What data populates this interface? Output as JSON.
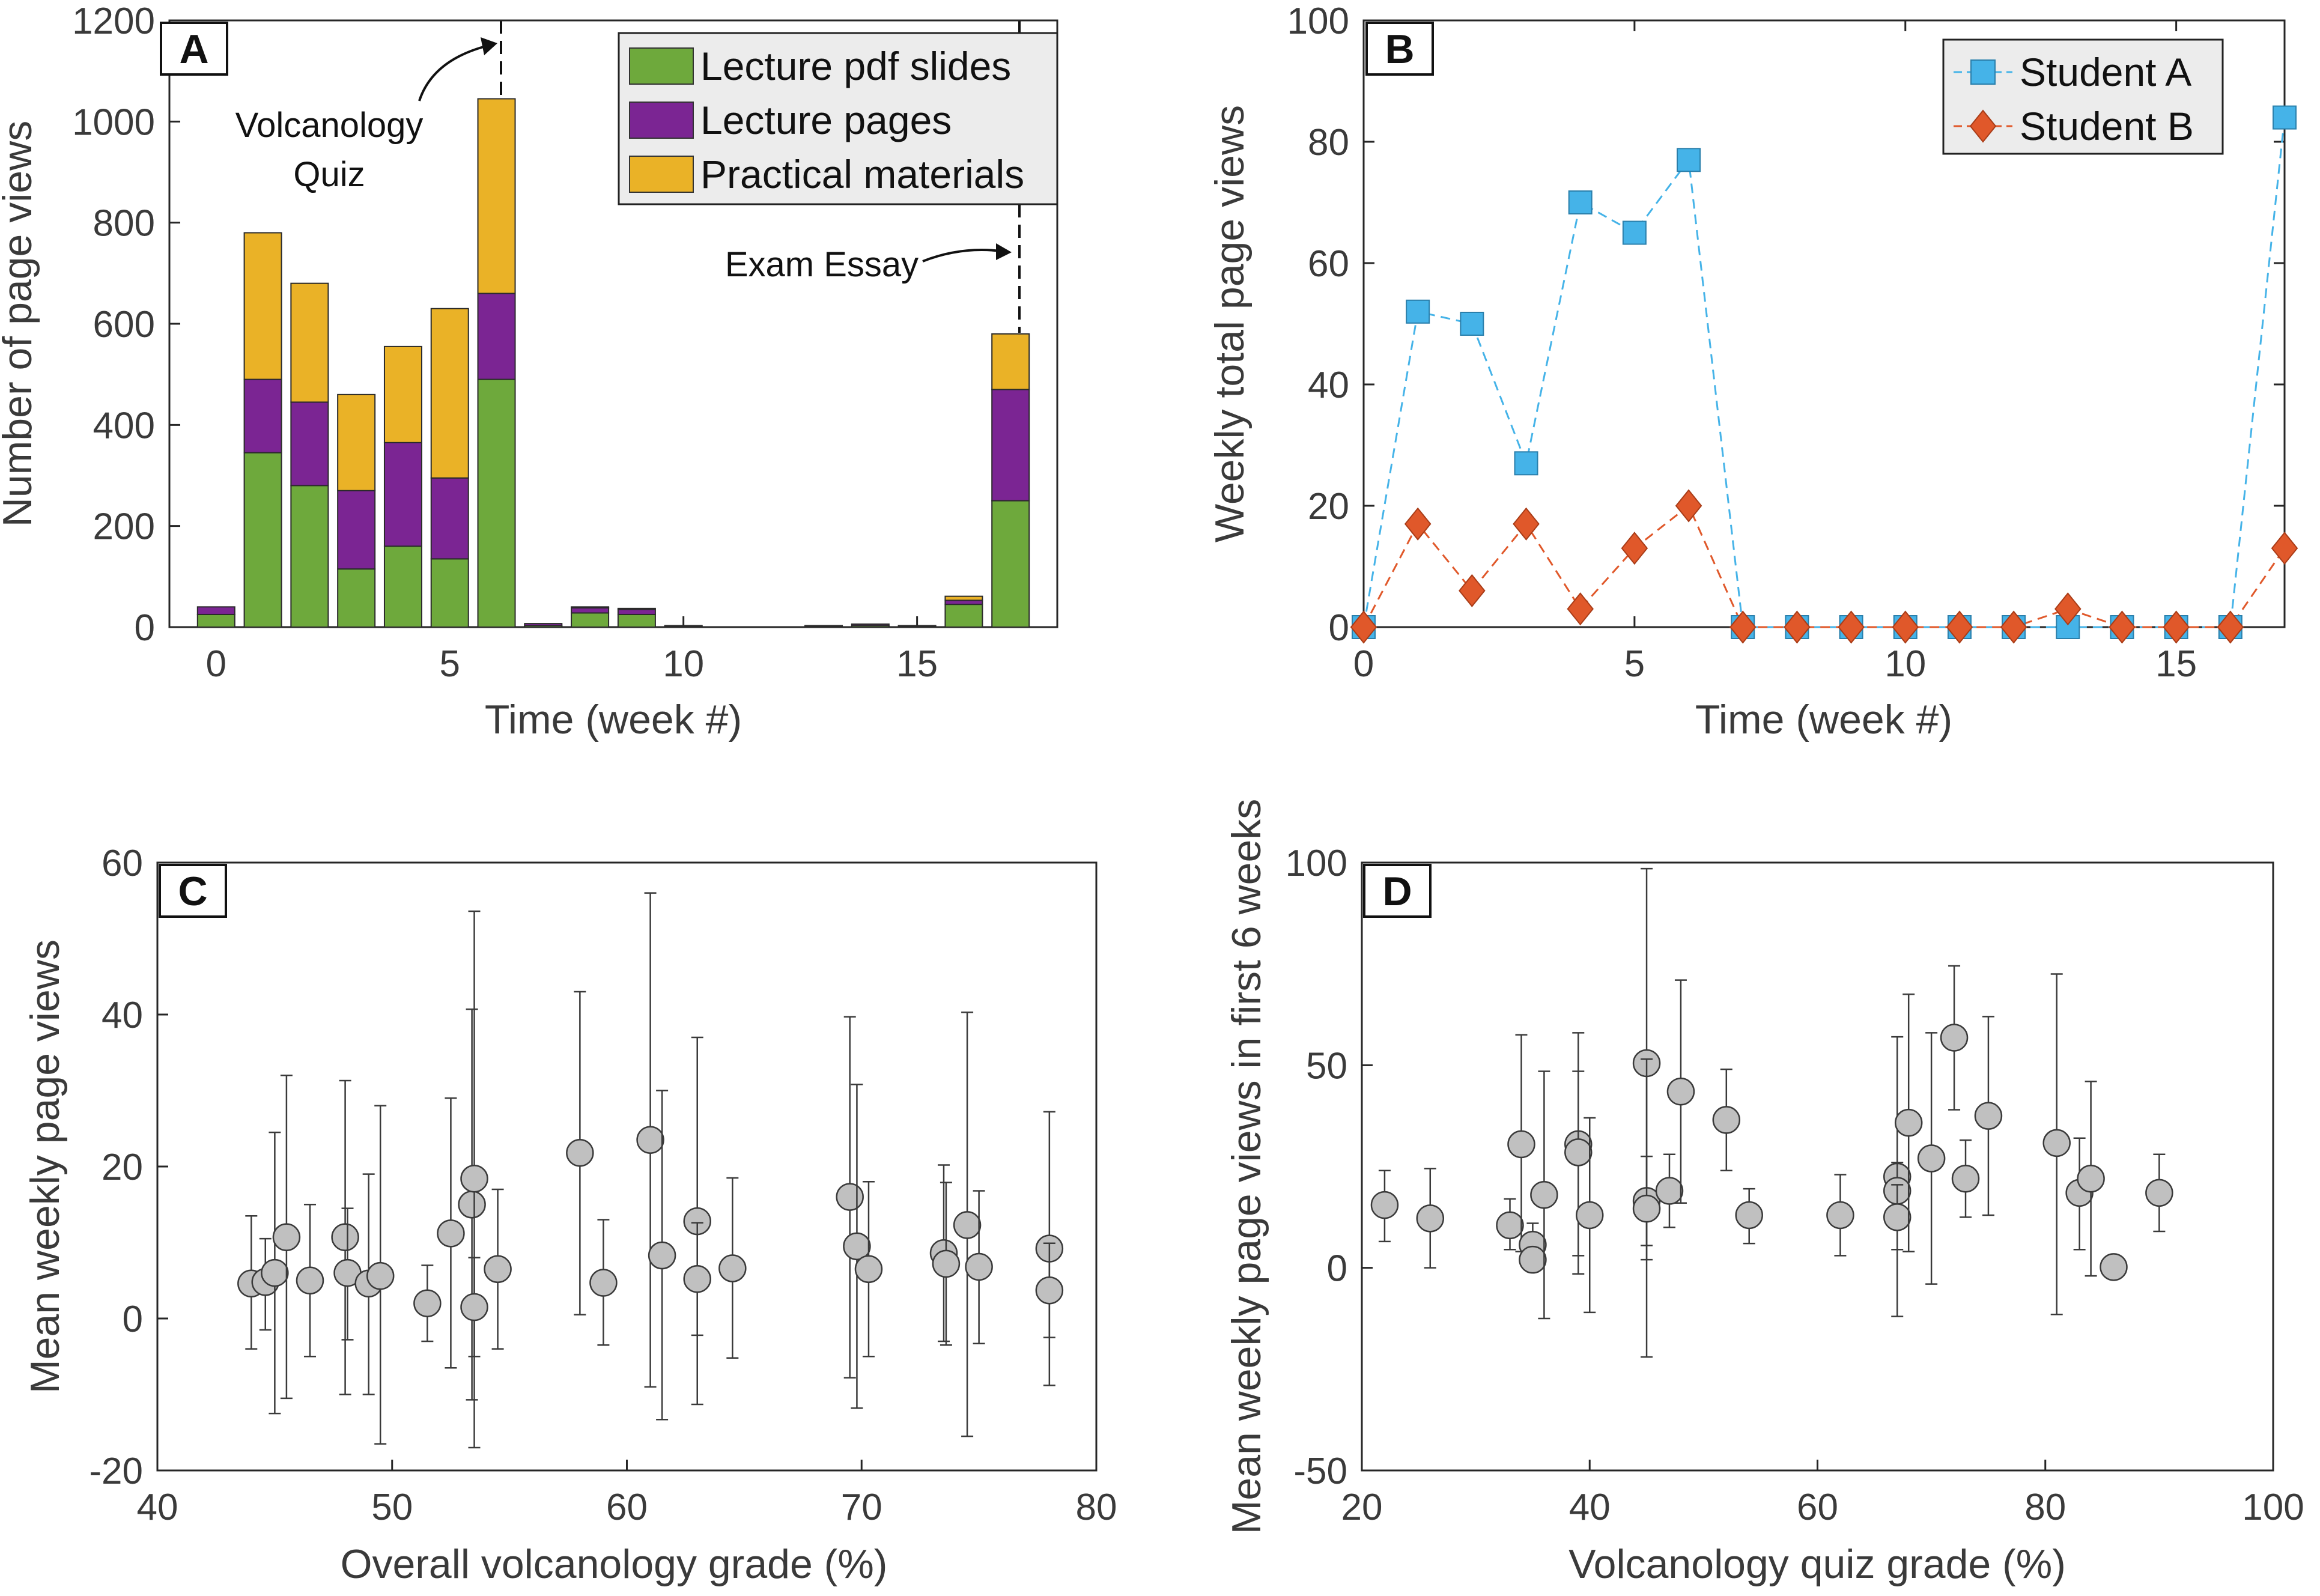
{
  "colors": {
    "pdf": "#6ea93c",
    "lecture": "#7b2593",
    "practical": "#eab227",
    "studentA": "#45b3e8",
    "studentB": "#e0582a",
    "scatter": "#c0c0c0"
  },
  "chart_data": [
    {
      "panel": "A",
      "type": "bar",
      "stacked": true,
      "xlabel": "Time (week #)",
      "ylabel": "Number of page views",
      "xlim": [
        -1,
        18
      ],
      "ylim": [
        0,
        1200
      ],
      "xticks": [
        0,
        5,
        10,
        15
      ],
      "yticks": [
        0,
        200,
        400,
        600,
        800,
        1000,
        1200
      ],
      "categories": [
        0,
        1,
        2,
        3,
        4,
        5,
        6,
        7,
        8,
        9,
        10,
        11,
        12,
        13,
        14,
        15,
        16,
        17
      ],
      "series": [
        {
          "name": "Lecture pdf slides",
          "values": [
            25,
            345,
            280,
            115,
            160,
            135,
            490,
            3,
            28,
            25,
            2,
            0,
            0,
            2,
            3,
            2,
            45,
            250
          ]
        },
        {
          "name": "Lecture pages",
          "values": [
            15,
            145,
            165,
            155,
            205,
            160,
            170,
            4,
            10,
            10,
            1,
            0,
            0,
            1,
            3,
            1,
            8,
            220
          ]
        },
        {
          "name": "Practical materials",
          "values": [
            0,
            290,
            235,
            190,
            190,
            335,
            385,
            0,
            2,
            2,
            0,
            0,
            0,
            0,
            0,
            0,
            8,
            110
          ]
        }
      ],
      "legend": [
        "Lecture pdf slides",
        "Lecture pages",
        "Practical materials"
      ],
      "legend_position": "top-right",
      "annotations": [
        {
          "text": "Volcanology Quiz",
          "lines": [
            "Volcanology",
            "Quiz"
          ],
          "x": 6
        },
        {
          "text": "Exam Essay",
          "x": 17
        }
      ]
    },
    {
      "panel": "B",
      "type": "line",
      "xlabel": "Time (week #)",
      "ylabel": "Weekly total page views",
      "xlim": [
        0,
        17
      ],
      "ylim": [
        0,
        100
      ],
      "xticks": [
        0,
        5,
        10,
        15
      ],
      "yticks": [
        0,
        20,
        40,
        60,
        80,
        100
      ],
      "x": [
        0,
        1,
        2,
        3,
        4,
        5,
        6,
        7,
        8,
        9,
        10,
        11,
        12,
        13,
        14,
        15,
        16,
        17
      ],
      "series": [
        {
          "name": "Student A",
          "marker": "square",
          "values": [
            0,
            52,
            50,
            27,
            70,
            65,
            77,
            0,
            0,
            0,
            0,
            0,
            0,
            0,
            0,
            0,
            0,
            84
          ]
        },
        {
          "name": "Student B",
          "marker": "diamond",
          "values": [
            0,
            17,
            6,
            17,
            3,
            13,
            20,
            0,
            0,
            0,
            0,
            0,
            0,
            3,
            0,
            0,
            0,
            13
          ]
        }
      ],
      "legend_position": "top-right"
    },
    {
      "panel": "C",
      "type": "scatter",
      "xlabel": "Overall volcanology grade (%)",
      "ylabel": "Mean weekly page views",
      "xlim": [
        40,
        80
      ],
      "ylim": [
        -20,
        60
      ],
      "xticks": [
        40,
        50,
        60,
        70,
        80
      ],
      "yticks": [
        -20,
        0,
        20,
        40,
        60
      ],
      "points": [
        {
          "x": 44.0,
          "y": 4.6,
          "lo": -4,
          "hi": 13.5
        },
        {
          "x": 44.6,
          "y": 4.8,
          "lo": -1.5,
          "hi": 10.5
        },
        {
          "x": 45.0,
          "y": 6.0,
          "lo": -12.5,
          "hi": 24.5
        },
        {
          "x": 45.5,
          "y": 10.7,
          "lo": -10.5,
          "hi": 32
        },
        {
          "x": 46.5,
          "y": 5.0,
          "lo": -5,
          "hi": 15
        },
        {
          "x": 48.0,
          "y": 10.7,
          "lo": -10,
          "hi": 31.3
        },
        {
          "x": 48.1,
          "y": 6.0,
          "lo": -2.8,
          "hi": 14.5
        },
        {
          "x": 49.0,
          "y": 4.6,
          "lo": -10,
          "hi": 19
        },
        {
          "x": 49.5,
          "y": 5.6,
          "lo": -16.5,
          "hi": 28
        },
        {
          "x": 51.5,
          "y": 2.0,
          "lo": -3,
          "hi": 7
        },
        {
          "x": 52.5,
          "y": 11.2,
          "lo": -6.5,
          "hi": 29
        },
        {
          "x": 53.4,
          "y": 15.0,
          "lo": -10.7,
          "hi": 40.7
        },
        {
          "x": 53.5,
          "y": 18.4,
          "lo": -17,
          "hi": 53.6
        },
        {
          "x": 53.5,
          "y": 1.5,
          "lo": -5,
          "hi": 8
        },
        {
          "x": 54.5,
          "y": 6.5,
          "lo": -4,
          "hi": 17
        },
        {
          "x": 58.0,
          "y": 21.8,
          "lo": 0.5,
          "hi": 43
        },
        {
          "x": 59.0,
          "y": 4.7,
          "lo": -3.5,
          "hi": 13
        },
        {
          "x": 61.0,
          "y": 23.5,
          "lo": -9,
          "hi": 56
        },
        {
          "x": 61.5,
          "y": 8.3,
          "lo": -13.3,
          "hi": 30
        },
        {
          "x": 63.0,
          "y": 12.8,
          "lo": -11.3,
          "hi": 37
        },
        {
          "x": 63.0,
          "y": 5.2,
          "lo": -2.2,
          "hi": 12.6
        },
        {
          "x": 64.5,
          "y": 6.6,
          "lo": -5.2,
          "hi": 18.5
        },
        {
          "x": 69.5,
          "y": 16.0,
          "lo": -7.8,
          "hi": 39.7
        },
        {
          "x": 69.8,
          "y": 9.5,
          "lo": -11.8,
          "hi": 30.8
        },
        {
          "x": 70.3,
          "y": 6.5,
          "lo": -5,
          "hi": 18
        },
        {
          "x": 73.5,
          "y": 8.6,
          "lo": -3,
          "hi": 20.2
        },
        {
          "x": 73.6,
          "y": 7.2,
          "lo": -3.5,
          "hi": 17.9
        },
        {
          "x": 74.5,
          "y": 12.3,
          "lo": -15.5,
          "hi": 40.3
        },
        {
          "x": 75.0,
          "y": 6.8,
          "lo": -3.3,
          "hi": 16.8
        },
        {
          "x": 78.0,
          "y": 9.2,
          "lo": -8.8,
          "hi": 27.2
        },
        {
          "x": 78.0,
          "y": 3.7,
          "lo": -2.5,
          "hi": 9.9
        }
      ]
    },
    {
      "panel": "D",
      "type": "scatter",
      "xlabel": "Volcanology quiz grade (%)",
      "ylabel": "Mean weekly page views in first 6 weeks",
      "xlim": [
        20,
        100
      ],
      "ylim": [
        -50,
        100
      ],
      "xticks": [
        20,
        40,
        60,
        80,
        100
      ],
      "yticks": [
        -50,
        0,
        50,
        100
      ],
      "points": [
        {
          "x": 22,
          "y": 15.5,
          "lo": 6.5,
          "hi": 24
        },
        {
          "x": 26,
          "y": 12.2,
          "lo": 0,
          "hi": 24.5
        },
        {
          "x": 33,
          "y": 10.5,
          "lo": 4.5,
          "hi": 17
        },
        {
          "x": 34,
          "y": 30.5,
          "lo": 4,
          "hi": 57.5
        },
        {
          "x": 35,
          "y": 5.7,
          "lo": 0,
          "hi": 11
        },
        {
          "x": 35,
          "y": 2.0,
          "lo": -1,
          "hi": 5
        },
        {
          "x": 36,
          "y": 18.0,
          "lo": -12.5,
          "hi": 48.5
        },
        {
          "x": 39,
          "y": 30.5,
          "lo": 3,
          "hi": 58
        },
        {
          "x": 39,
          "y": 28.5,
          "lo": -1.5,
          "hi": 48.5
        },
        {
          "x": 40,
          "y": 13.0,
          "lo": -11,
          "hi": 37
        },
        {
          "x": 45,
          "y": 50.5,
          "lo": 2,
          "hi": 98.5
        },
        {
          "x": 45,
          "y": 16.5,
          "lo": 5.5,
          "hi": 27.5
        },
        {
          "x": 45,
          "y": 14.6,
          "lo": -22,
          "hi": 51.5
        },
        {
          "x": 47,
          "y": 19.0,
          "lo": 10,
          "hi": 28
        },
        {
          "x": 48,
          "y": 43.5,
          "lo": 16,
          "hi": 71
        },
        {
          "x": 52,
          "y": 36.5,
          "lo": 24,
          "hi": 49
        },
        {
          "x": 54,
          "y": 13.0,
          "lo": 6,
          "hi": 19.5
        },
        {
          "x": 62,
          "y": 13.0,
          "lo": 3,
          "hi": 23
        },
        {
          "x": 67,
          "y": 22.5,
          "lo": -12,
          "hi": 57
        },
        {
          "x": 67,
          "y": 19.0,
          "lo": 12,
          "hi": 26
        },
        {
          "x": 67,
          "y": 12.5,
          "lo": 4.5,
          "hi": 20.5
        },
        {
          "x": 68,
          "y": 35.8,
          "lo": 4,
          "hi": 67.5
        },
        {
          "x": 70,
          "y": 27.0,
          "lo": -4,
          "hi": 58
        },
        {
          "x": 72,
          "y": 56.8,
          "lo": 39,
          "hi": 74.5
        },
        {
          "x": 73,
          "y": 22.0,
          "lo": 12.5,
          "hi": 31.5
        },
        {
          "x": 75,
          "y": 37.5,
          "lo": 13,
          "hi": 62
        },
        {
          "x": 81,
          "y": 30.8,
          "lo": -11.5,
          "hi": 72.5
        },
        {
          "x": 83,
          "y": 18.5,
          "lo": 4.5,
          "hi": 32
        },
        {
          "x": 84,
          "y": 22.0,
          "lo": -2,
          "hi": 46
        },
        {
          "x": 86,
          "y": 0.2,
          "lo": 0,
          "hi": 0.5
        },
        {
          "x": 90,
          "y": 18.5,
          "lo": 9,
          "hi": 28
        }
      ]
    }
  ]
}
